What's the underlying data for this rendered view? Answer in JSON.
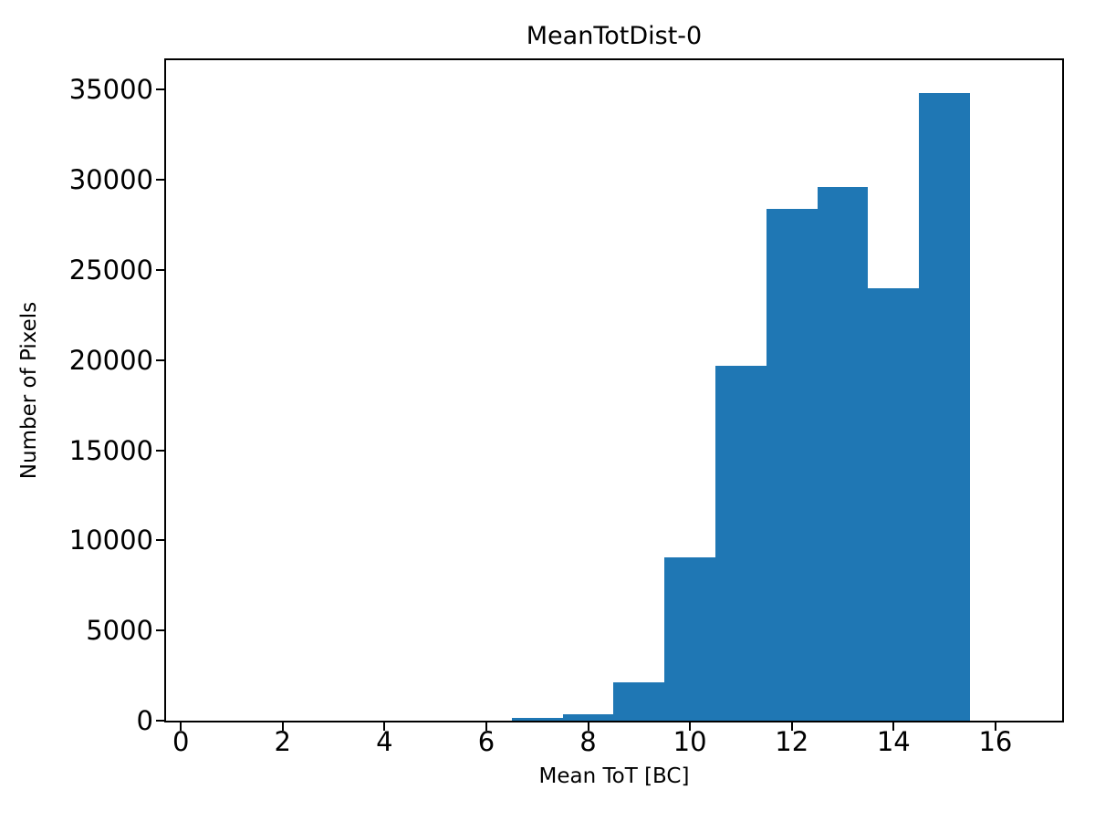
{
  "chart_data": {
    "type": "bar",
    "title": "MeanTotDist-0",
    "xlabel": "Mean ToT [BC]",
    "ylabel": "Number of Pixels",
    "bin_edges": [
      6.5,
      7.5,
      8.5,
      9.5,
      10.5,
      11.5,
      12.5,
      13.5,
      14.5,
      15.5
    ],
    "values": [
      130,
      350,
      2110,
      9080,
      19660,
      28360,
      29590,
      23960,
      34800
    ],
    "x_ticks": [
      0,
      2,
      4,
      6,
      8,
      10,
      12,
      14,
      16
    ],
    "y_ticks": [
      0,
      5000,
      10000,
      15000,
      20000,
      25000,
      30000,
      35000
    ],
    "xlim": [
      -0.29,
      17.31
    ],
    "ylim": [
      0,
      36630
    ],
    "bar_color": "#1f77b4",
    "axis_color": "#000000",
    "background_color": "#ffffff",
    "grid": false,
    "legend_position": "none"
  }
}
